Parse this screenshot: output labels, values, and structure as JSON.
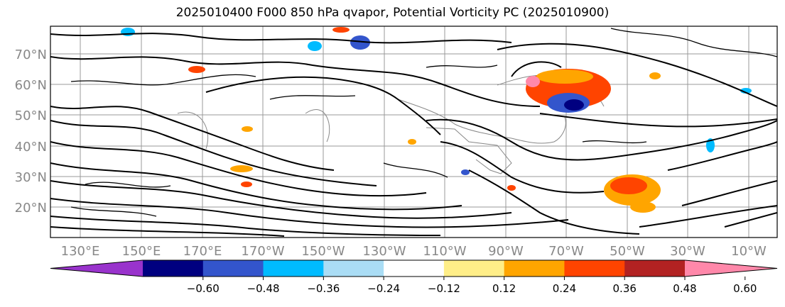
{
  "title": "2025010400 F000 850 hPa qvapor, Potential Vorticity PC (2025010900)",
  "lat_labels": [
    "70°N",
    "60°N",
    "50°N",
    "40°N",
    "30°N",
    "20°N"
  ],
  "lon_labels": [
    "130°E",
    "150°E",
    "170°E",
    "170°W",
    "150°W",
    "130°W",
    "110°W",
    "90°W",
    "70°W",
    "50°W",
    "30°W",
    "10°W"
  ],
  "colorbar": {
    "colors": [
      "#9933cc",
      "#000080",
      "#3355cc",
      "#00bbff",
      "#aaddf5",
      "#ffffff",
      "#ffee88",
      "#ffa500",
      "#ff4400",
      "#b22222",
      "#ff88aa"
    ],
    "tick_labels": [
      "−0.60",
      "−0.48",
      "−0.36",
      "−0.24",
      "−0.12",
      "0.12",
      "0.24",
      "0.36",
      "0.48",
      "0.60"
    ]
  }
}
